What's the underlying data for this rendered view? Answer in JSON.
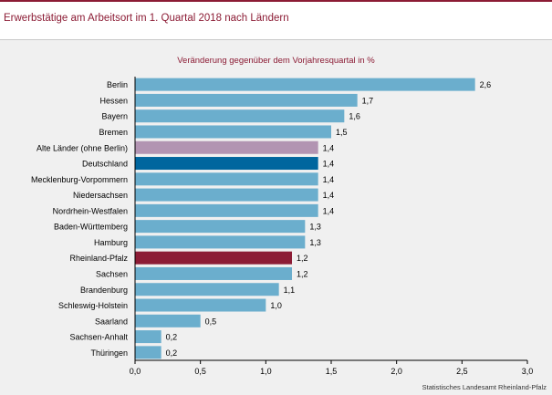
{
  "header": {
    "title": "Erwerbstätige am Arbeitsort im 1. Quartal 2018 nach Ländern"
  },
  "colors": {
    "accent": "#8c1c35",
    "bar_default": "#6baecd",
    "bar_old_states": "#b294b2",
    "bar_germany": "#00669e",
    "bar_rlp": "#8c1c35"
  },
  "source": "Statistisches Landesamt Rheinland-Pfalz",
  "chart_data": {
    "type": "bar",
    "orientation": "horizontal",
    "title": "Veränderung gegenüber dem Vorjahresquartal in %",
    "xlim": [
      0,
      3
    ],
    "xticks": [
      "0,0",
      "0,5",
      "1,0",
      "1,5",
      "2,0",
      "2,5",
      "3,0"
    ],
    "grid": false,
    "categories": [
      "Berlin",
      "Hessen",
      "Bayern",
      "Bremen",
      "Alte Länder (ohne Berlin)",
      "Deutschland",
      "Mecklenburg-Vorpommern",
      "Niedersachsen",
      "Nordrhein-Westfalen",
      "Baden-Württemberg",
      "Hamburg",
      "Rheinland-Pfalz",
      "Sachsen",
      "Brandenburg",
      "Schleswig-Holstein",
      "Saarland",
      "Sachsen-Anhalt",
      "Thüringen"
    ],
    "values": [
      2.6,
      1.7,
      1.6,
      1.5,
      1.4,
      1.4,
      1.4,
      1.4,
      1.4,
      1.3,
      1.3,
      1.2,
      1.2,
      1.1,
      1.0,
      0.5,
      0.2,
      0.2
    ],
    "value_labels": [
      "2,6",
      "1,7",
      "1,6",
      "1,5",
      "1,4",
      "1,4",
      "1,4",
      "1,4",
      "1,4",
      "1,3",
      "1,3",
      "1,2",
      "1,2",
      "1,1",
      "1,0",
      "0,5",
      "0,2",
      "0,2"
    ],
    "highlight": {
      "Alte Länder (ohne Berlin)": "#b294b2",
      "Deutschland": "#00669e",
      "Rheinland-Pfalz": "#8c1c35"
    }
  }
}
